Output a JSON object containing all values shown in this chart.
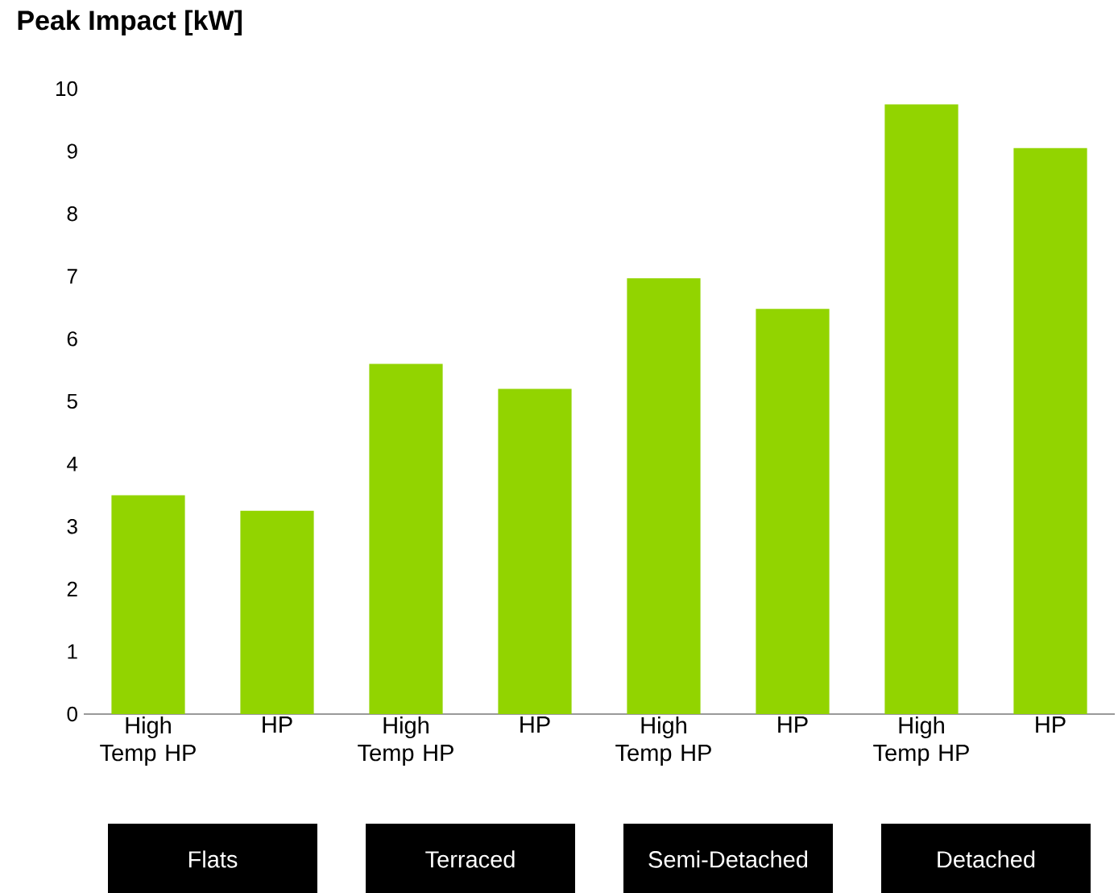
{
  "chart_data": {
    "type": "bar",
    "title": "Peak Impact [kW]",
    "categories": [
      "High Temp HP",
      "HP",
      "High Temp HP",
      "HP",
      "High Temp HP",
      "HP",
      "High Temp HP",
      "HP"
    ],
    "values": [
      3.5,
      3.25,
      5.6,
      5.2,
      6.97,
      6.48,
      9.75,
      9.05
    ],
    "color": "#92d400",
    "ylim": [
      0,
      10
    ],
    "yticks": [
      0,
      1,
      2,
      3,
      4,
      5,
      6,
      7,
      8,
      9,
      10
    ],
    "annotations": [
      "Flats",
      "Terraced",
      "Semi-Detached",
      "Detached"
    ]
  }
}
